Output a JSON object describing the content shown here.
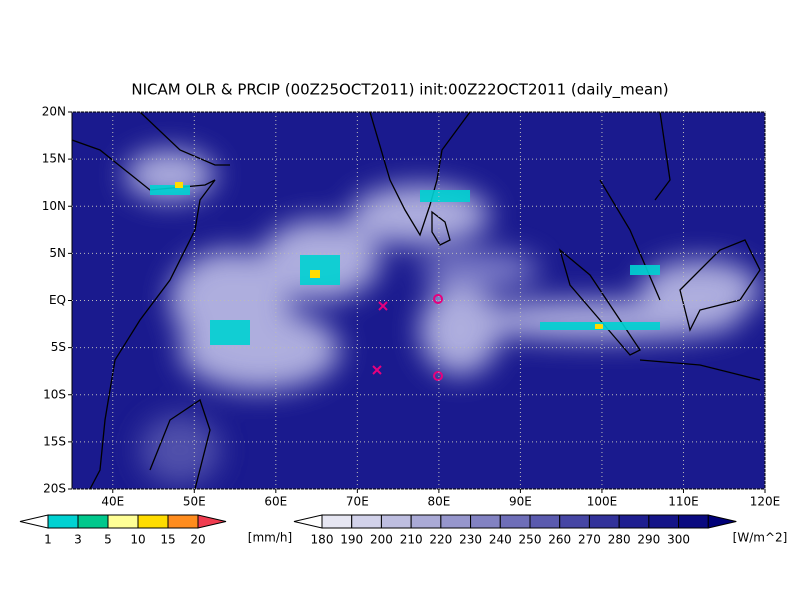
{
  "title": "NICAM OLR & PRCIP (00Z25OCT2011) init:00Z22OCT2011 (daily_mean)",
  "map": {
    "lon_range": [
      35,
      120
    ],
    "lat_range": [
      -20,
      20
    ],
    "lat_ticks": [
      {
        "value": 20,
        "label": "20N"
      },
      {
        "value": 15,
        "label": "15N"
      },
      {
        "value": 10,
        "label": "10N"
      },
      {
        "value": 5,
        "label": "5N"
      },
      {
        "value": 0,
        "label": "EQ"
      },
      {
        "value": -5,
        "label": "5S"
      },
      {
        "value": -10,
        "label": "10S"
      },
      {
        "value": -15,
        "label": "15S"
      },
      {
        "value": -20,
        "label": "20S"
      }
    ],
    "lon_ticks": [
      {
        "value": 40,
        "label": "40E"
      },
      {
        "value": 50,
        "label": "50E"
      },
      {
        "value": 60,
        "label": "60E"
      },
      {
        "value": 70,
        "label": "70E"
      },
      {
        "value": 80,
        "label": "80E"
      },
      {
        "value": 90,
        "label": "90E"
      },
      {
        "value": 100,
        "label": "100E"
      },
      {
        "value": 110,
        "label": "110E"
      },
      {
        "value": 120,
        "label": "120E"
      }
    ]
  },
  "precip_colorbar": {
    "labels": [
      1,
      3,
      5,
      10,
      15,
      20
    ],
    "unit": "[mm/h]",
    "colors": [
      "#ffffff",
      "#00d2d2",
      "#00c88c",
      "#ffff96",
      "#ffdc00",
      "#ff8c1e",
      "#f03c50"
    ]
  },
  "olr_colorbar": {
    "labels": [
      180,
      190,
      200,
      210,
      220,
      230,
      240,
      250,
      260,
      270,
      280,
      290,
      300
    ],
    "unit": "[W/m^2]",
    "colors": [
      "#ffffff",
      "#e6e6f2",
      "#d2d2ea",
      "#bebee0",
      "#aaaad6",
      "#9696cc",
      "#8282c2",
      "#6e6eb8",
      "#5a5aae",
      "#4646a4",
      "#32329a",
      "#1e1e90",
      "#141488",
      "#0a0a80",
      "#000078"
    ]
  }
}
